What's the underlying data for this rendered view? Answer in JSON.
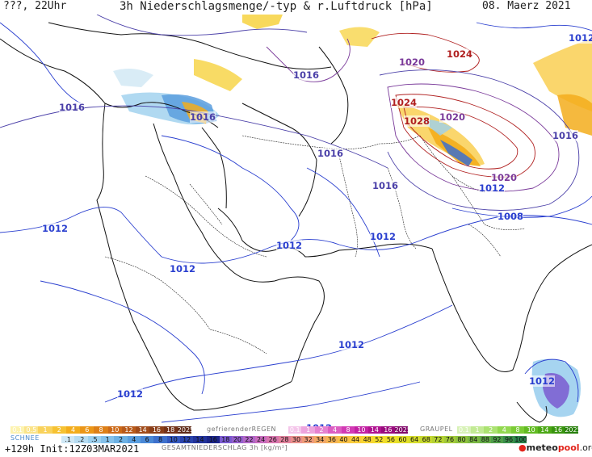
{
  "header": {
    "left": "???, 22Uhr",
    "title": "3h Niederschlagsmenge/-typ & r.Luftdruck [hPa]",
    "date": "08. Maerz 2021"
  },
  "isobars": [
    {
      "text": "1012",
      "color": "#2a3fcf"
    },
    {
      "text": "1020",
      "color": "#7a3a9a"
    },
    {
      "text": "1024",
      "color": "#b02020"
    },
    {
      "text": "1016",
      "color": "#4a3fa8"
    },
    {
      "text": "1016",
      "color": "#4a3fa8"
    },
    {
      "text": "1024",
      "color": "#b02020"
    },
    {
      "text": "1028",
      "color": "#b02020"
    },
    {
      "text": "1020",
      "color": "#7a3a9a"
    },
    {
      "text": "1016",
      "color": "#4a3fa8"
    },
    {
      "text": "1016",
      "color": "#4a3fa8"
    },
    {
      "text": "1016",
      "color": "#4a3fa8"
    },
    {
      "text": "1016",
      "color": "#4a3fa8"
    },
    {
      "text": "1020",
      "color": "#7a3a9a"
    },
    {
      "text": "1012",
      "color": "#2a3fcf"
    },
    {
      "text": "1008",
      "color": "#2a3fcf"
    },
    {
      "text": "1012",
      "color": "#2a3fcf"
    },
    {
      "text": "1012",
      "color": "#2a3fcf"
    },
    {
      "text": "1012",
      "color": "#2a3fcf"
    },
    {
      "text": "1012",
      "color": "#2a3fcf"
    },
    {
      "text": "1012",
      "color": "#2a3fcf"
    },
    {
      "text": "1012",
      "color": "#2a3fcf"
    },
    {
      "text": "1012",
      "color": "#2a3fcf"
    },
    {
      "text": "1012",
      "color": "#2a3fcf"
    }
  ],
  "legend": {
    "rain_values": [
      "0.1",
      "0.5",
      "1",
      "2",
      "4",
      "6",
      "8",
      "10",
      "12",
      "14",
      "16",
      "18",
      "2025+"
    ],
    "rain_colors": [
      "#fdf3b0",
      "#fbe48a",
      "#f9d25c",
      "#f6c233",
      "#f3ad1c",
      "#eb9618",
      "#dd7f17",
      "#cc6a18",
      "#b85a1a",
      "#a04b1a",
      "#8a3f1a",
      "#74331a",
      "#5e2a18"
    ],
    "snow_label": "SCHNEE",
    "snow_values": [
      ".1",
      ".2",
      ".5",
      "1",
      "2",
      "4",
      "6",
      "8",
      "10",
      "12",
      "14",
      "16"
    ],
    "snow_colors": [
      "#cfe8f6",
      "#b6dcf2",
      "#9ccfee",
      "#84c1ea",
      "#6cb1e4",
      "#5a9ede",
      "#4a88d6",
      "#3d70cc",
      "#3358be",
      "#2a44ac",
      "#22339a",
      "#1b2588"
    ],
    "frz_label": "gefrierenderREGEN",
    "frz_values": [
      "0.1",
      "1",
      "2",
      "4",
      "8",
      "10",
      "14",
      "16",
      "2025+"
    ],
    "frz_colors": [
      "#f4c6ea",
      "#eda4dd",
      "#e581d0",
      "#dc5dc2",
      "#d23ab4",
      "#c321a3",
      "#b01290",
      "#990a7d",
      "#800669"
    ],
    "graupel_label": "GRAUPEL",
    "graupel_values": [
      "0.1",
      "1",
      "2",
      "4",
      "8",
      "10",
      "14",
      "16",
      "2025+"
    ],
    "graupel_colors": [
      "#d8f2b8",
      "#c2ea94",
      "#abe271",
      "#92d84f",
      "#7acb35",
      "#62bb22",
      "#4ca816",
      "#38940e",
      "#267f09"
    ],
    "total_values": [
      "18",
      "20",
      "22",
      "24",
      "26",
      "28",
      "30",
      "32",
      "34",
      "36",
      "40",
      "44",
      "48",
      "52",
      "56",
      "60",
      "64",
      "68",
      "72",
      "76",
      "80",
      "84",
      "88",
      "92",
      "96",
      "100"
    ],
    "total_colors": [
      "#7a5ad0",
      "#9560cc",
      "#b066c6",
      "#c86cbd",
      "#d876ae",
      "#e2829d",
      "#e98f8b",
      "#ee9b79",
      "#f2a867",
      "#f5b456",
      "#f8c046",
      "#f9cb3a",
      "#f8d532",
      "#f3dd2c",
      "#ecdf2a",
      "#e2df2a",
      "#d5dc2c",
      "#c6d82f",
      "#b5d234",
      "#a2ca39",
      "#8ec13e",
      "#79b743",
      "#63ab47",
      "#4e9e4a",
      "#3a904b",
      "#28824b"
    ],
    "gesamt_label": "GESAMTNIEDERSCHLAG 3h [kg/m²]"
  },
  "footer": {
    "run": "+129h Init:12Z03MAR2021",
    "logo_a": "meteo",
    "logo_b": "pool",
    "logo_c": ".org"
  }
}
